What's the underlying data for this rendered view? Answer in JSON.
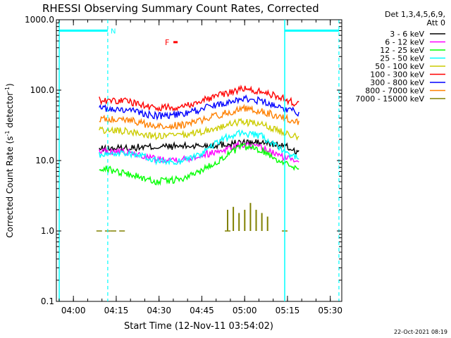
{
  "chart_data": {
    "type": "line",
    "title": "RHESSI Observing Summary Count Rates, Corrected",
    "xlabel": "Start Time (12-Nov-11 03:54:02)",
    "ylabel_main": "Corrected Count Rate (s",
    "ylabel_sup1": "-1",
    "ylabel_mid": " detector",
    "ylabel_sup2": "-1",
    "ylabel_end": ")",
    "x_range_minutes": [
      0,
      100
    ],
    "y_scale": "log",
    "ylim": [
      0.1,
      1000
    ],
    "x_ticks": [
      {
        "label": "04:00",
        "min": 5.97
      },
      {
        "label": "04:15",
        "min": 20.97
      },
      {
        "label": "04:30",
        "min": 35.97
      },
      {
        "label": "04:45",
        "min": 50.97
      },
      {
        "label": "05:00",
        "min": 65.97
      },
      {
        "label": "05:15",
        "min": 80.97
      },
      {
        "label": "05:30",
        "min": 95.97
      }
    ],
    "y_ticks": [
      {
        "label": "0.1",
        "value": 0.1
      },
      {
        "label": "1.0",
        "value": 1
      },
      {
        "label": "10.0",
        "value": 10
      },
      {
        "label": "100.0",
        "value": 100
      },
      {
        "label": "1000.0",
        "value": 1000
      }
    ],
    "legend_header": [
      "Det 1,3,4,5,6,9,",
      "Att 0"
    ],
    "legend_position": "right",
    "series": [
      {
        "name": "3 - 6 keV",
        "color": "#000000",
        "points": [
          [
            15,
            14.5
          ],
          [
            30,
            15.5
          ],
          [
            45,
            16
          ],
          [
            55,
            16.5
          ],
          [
            65,
            18
          ],
          [
            72,
            18
          ],
          [
            80,
            16
          ],
          [
            85,
            13
          ]
        ]
      },
      {
        "name": "6 - 12 keV",
        "color": "#ff00ff",
        "points": [
          [
            15,
            13.5
          ],
          [
            25,
            13
          ],
          [
            35,
            10.5
          ],
          [
            45,
            10.5
          ],
          [
            55,
            13
          ],
          [
            65,
            17
          ],
          [
            72,
            15
          ],
          [
            80,
            11
          ],
          [
            85,
            10
          ]
        ]
      },
      {
        "name": "12 - 25 keV",
        "color": "#00ff00",
        "points": [
          [
            15,
            8
          ],
          [
            25,
            6.5
          ],
          [
            35,
            5
          ],
          [
            45,
            5.5
          ],
          [
            55,
            9
          ],
          [
            65,
            16
          ],
          [
            72,
            14
          ],
          [
            80,
            9
          ],
          [
            85,
            8
          ]
        ]
      },
      {
        "name": "25 - 50 keV",
        "color": "#00ffff",
        "points": [
          [
            15,
            12
          ],
          [
            25,
            13
          ],
          [
            35,
            10
          ],
          [
            42,
            9.5
          ],
          [
            50,
            12
          ],
          [
            58,
            20
          ],
          [
            65,
            25
          ],
          [
            72,
            22
          ],
          [
            80,
            13
          ],
          [
            85,
            11
          ]
        ]
      },
      {
        "name": "50 - 100 keV",
        "color": "#cccc00",
        "points": [
          [
            15,
            27
          ],
          [
            25,
            26
          ],
          [
            35,
            22
          ],
          [
            45,
            23
          ],
          [
            55,
            28
          ],
          [
            65,
            36
          ],
          [
            72,
            32
          ],
          [
            80,
            25
          ],
          [
            85,
            22
          ]
        ]
      },
      {
        "name": "100 - 300 keV",
        "color": "#ff0000",
        "points": [
          [
            15,
            72
          ],
          [
            25,
            70
          ],
          [
            35,
            55
          ],
          [
            45,
            60
          ],
          [
            55,
            80
          ],
          [
            65,
            105
          ],
          [
            72,
            95
          ],
          [
            80,
            75
          ],
          [
            85,
            62
          ]
        ]
      },
      {
        "name": "300 - 800 keV",
        "color": "#0000ff",
        "points": [
          [
            15,
            55
          ],
          [
            25,
            52
          ],
          [
            35,
            43
          ],
          [
            45,
            46
          ],
          [
            55,
            60
          ],
          [
            65,
            77
          ],
          [
            72,
            70
          ],
          [
            80,
            55
          ],
          [
            85,
            47
          ]
        ]
      },
      {
        "name": "800 - 7000 keV",
        "color": "#ff8000",
        "points": [
          [
            15,
            40
          ],
          [
            25,
            38
          ],
          [
            35,
            30
          ],
          [
            45,
            32
          ],
          [
            55,
            42
          ],
          [
            65,
            55
          ],
          [
            72,
            50
          ],
          [
            80,
            40
          ],
          [
            85,
            35
          ]
        ]
      },
      {
        "name": "7000 - 15000 keV",
        "color": "#808000",
        "points": [
          [
            15,
            1
          ],
          [
            18,
            1
          ],
          [
            20,
            1
          ],
          [
            23,
            1
          ],
          [
            60,
            1
          ],
          [
            80,
            1
          ]
        ]
      }
    ],
    "spike_series": {
      "color": "#808000",
      "bars": [
        [
          60,
          2.0
        ],
        [
          62,
          2.2
        ],
        [
          64,
          1.8
        ],
        [
          66,
          2.0
        ],
        [
          68,
          2.5
        ],
        [
          70,
          2.0
        ],
        [
          72,
          1.8
        ],
        [
          74,
          1.6
        ]
      ]
    },
    "time_markers": {
      "color": "#00ffff",
      "solid_x": [
        1.0,
        80.0
      ],
      "dashed_x": [
        18.0,
        99.0
      ],
      "saa_top_value": 700,
      "saa_segments": [
        [
          1.0,
          18.0
        ],
        [
          80.0,
          99.0
        ]
      ],
      "n_label": "N",
      "n_label_x": 19.0
    },
    "flare_marker": {
      "label": "F",
      "color": "#ff0000",
      "x": 41.0,
      "value": 480
    },
    "timestamp": "22-Oct-2021 08:19"
  }
}
